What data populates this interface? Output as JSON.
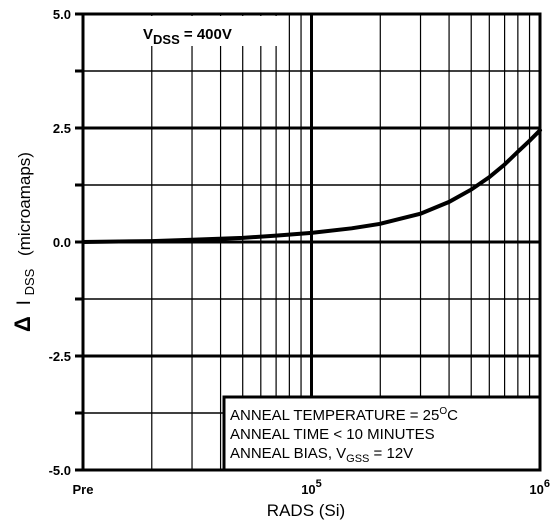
{
  "chart_data": {
    "type": "line",
    "title": "",
    "xlabel": "RADS (Si)",
    "ylabel": "Δ I_DSS (microamaps)",
    "x_scale": "log",
    "x_tick_labels": [
      {
        "x": 10000,
        "label": "Pre"
      },
      {
        "x": 100000,
        "label": "10^5"
      },
      {
        "x": 1000000,
        "label": "10^6"
      }
    ],
    "xlim": [
      10000,
      1000000
    ],
    "ylim": [
      -5.0,
      5.0
    ],
    "y_ticks": [
      {
        "value": 5.0,
        "label": "5.0"
      },
      {
        "value": 2.5,
        "label": "2.5"
      },
      {
        "value": 0.0,
        "label": "0.0"
      },
      {
        "value": -2.5,
        "label": "-2.5"
      },
      {
        "value": -5.0,
        "label": "-5.0"
      }
    ],
    "grid": true,
    "series": [
      {
        "x": [
          10000,
          20000,
          30000,
          50000,
          70000,
          100000,
          150000,
          200000,
          300000,
          400000,
          500000,
          600000,
          700000,
          800000,
          900000,
          1000000
        ],
        "y": [
          0.0,
          0.02,
          0.05,
          0.09,
          0.14,
          0.2,
          0.3,
          0.4,
          0.62,
          0.88,
          1.15,
          1.42,
          1.7,
          1.98,
          2.22,
          2.45
        ]
      }
    ],
    "annotations": {
      "vdss": {
        "prefix": "V",
        "sub": "DSS",
        "suffix": " = 400V"
      },
      "box_lines": [
        {
          "text": "ANNEAL TEMPERATURE = 25",
          "sup": "O",
          "after": "C"
        },
        {
          "text": "ANNEAL TIME < 10 MINUTES"
        },
        {
          "text": "ANNEAL BIAS, V",
          "sub": "GSS",
          "after": " = 12V"
        }
      ]
    }
  }
}
